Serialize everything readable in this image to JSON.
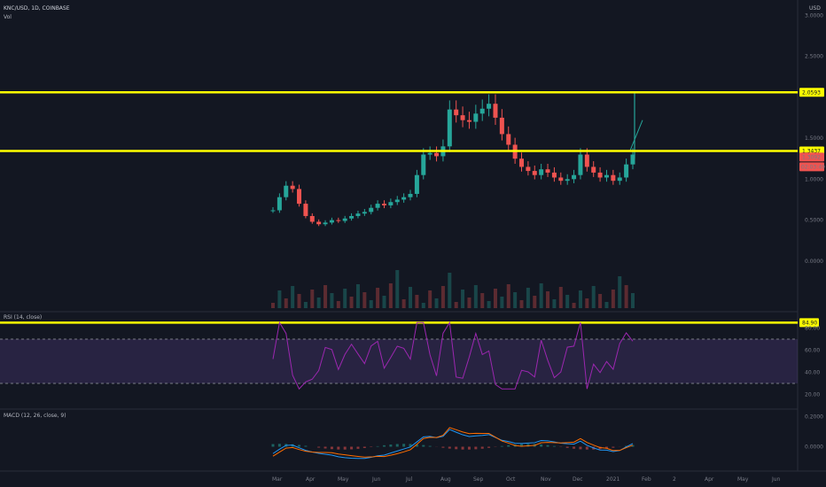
{
  "header": {
    "symbol_line": "KNC/USD, 1D, COINBASE",
    "vol_label": "Vol",
    "currency": "USD"
  },
  "price_axis": [
    "3.0000",
    "2.5000",
    "1.5000",
    "1.0000",
    "0.5000",
    "0.0000"
  ],
  "price_badges": [
    {
      "text": "2.0593",
      "kind": "level"
    },
    {
      "text": "1.3437",
      "kind": "level"
    },
    {
      "text": "1.3092",
      "kind": "price"
    },
    {
      "text": "02:03:49",
      "kind": "time"
    }
  ],
  "rsi": {
    "label": "RSI (14, close)",
    "axis": [
      "80.00",
      "60.00",
      "40.00",
      "20.00"
    ],
    "level_badge": "84.90"
  },
  "macd": {
    "label": "MACD (12, 26, close, 9)",
    "axis": [
      "0.2000",
      "0.0000"
    ]
  },
  "time_axis": [
    "Mar",
    "Apr",
    "May",
    "Jun",
    "Jul",
    "Aug",
    "Sep",
    "Oct",
    "Nov",
    "Dec",
    "2021",
    "Feb",
    "2",
    "Apr",
    "May",
    "Jun"
  ],
  "colors": {
    "up": "#26a69a",
    "down": "#ef5350",
    "level_line": "#ffff00",
    "rsi_line": "#9c27b0",
    "macd_line": "#2196f3",
    "signal_line": "#ff6d00"
  },
  "chart_data": {
    "type": "candlestick",
    "series_close": [
      0.62,
      0.78,
      0.92,
      0.88,
      0.7,
      0.55,
      0.48,
      0.45,
      0.47,
      0.5,
      0.49,
      0.52,
      0.55,
      0.58,
      0.6,
      0.65,
      0.7,
      0.68,
      0.72,
      0.75,
      0.78,
      0.82,
      1.05,
      1.3,
      1.32,
      1.28,
      1.4,
      1.85,
      1.78,
      1.72,
      1.7,
      1.8,
      1.86,
      1.92,
      1.75,
      1.55,
      1.42,
      1.25,
      1.15,
      1.1,
      1.05,
      1.12,
      1.08,
      1.02,
      0.98,
      1.0,
      1.05,
      1.3,
      1.15,
      1.08,
      1.02,
      1.05,
      0.98,
      1.02,
      1.18,
      1.3
    ],
    "levels": [
      2.0593,
      1.3437
    ],
    "rsi_levels": [
      70,
      30
    ],
    "rsi_level_line": 84.9
  }
}
